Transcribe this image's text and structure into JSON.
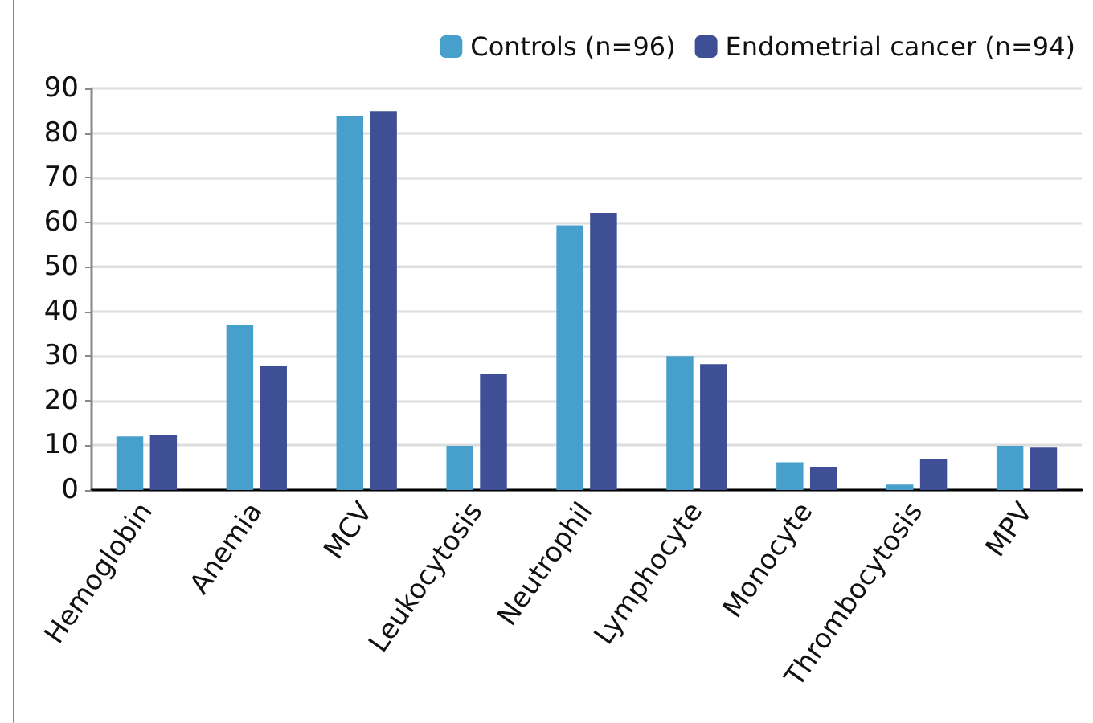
{
  "chart_data": {
    "type": "bar",
    "categories": [
      "Hemoglobin",
      "Anemia",
      "MCV",
      "Leukocytosis",
      "Neutrophil",
      "Lymphocyte",
      "Monocyte",
      "Thrombocytosis",
      "MPV"
    ],
    "series": [
      {
        "name": "Controls (n=96)",
        "color": "#47a0cc",
        "values": [
          12.0,
          36.9,
          83.8,
          9.9,
          59.3,
          30.0,
          6.2,
          1.2,
          9.9
        ]
      },
      {
        "name": "Endometrial cancer (n=94)",
        "color": "#3f4f95",
        "values": [
          12.4,
          27.9,
          84.9,
          26.1,
          62.1,
          28.2,
          5.2,
          7.0,
          9.5
        ]
      }
    ],
    "ylim": [
      0,
      90
    ],
    "yticks": [
      0,
      10,
      20,
      30,
      40,
      50,
      60,
      70,
      80,
      90
    ],
    "grid": "y",
    "legend": "top right"
  }
}
